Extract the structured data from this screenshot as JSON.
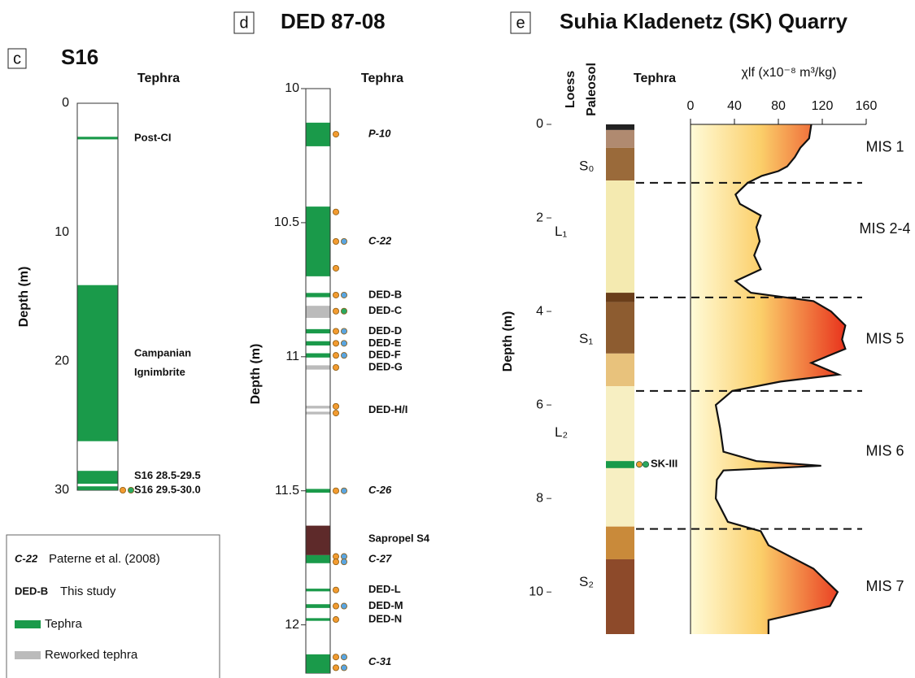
{
  "panel_c": {
    "letter": "c",
    "title": "S16",
    "column_header": "Tephra",
    "axis_label": "Depth (m)",
    "ylim": [
      0,
      30
    ],
    "yticks": [
      0,
      10,
      20,
      30
    ],
    "layers": [
      {
        "top": 2.6,
        "bottom": 2.8,
        "color": "#1a9a4a"
      },
      {
        "top": 14.1,
        "bottom": 26.2,
        "color": "#1a9a4a"
      },
      {
        "top": 28.5,
        "bottom": 29.5,
        "color": "#1a9a4a"
      },
      {
        "top": 29.7,
        "bottom": 30,
        "color": "#1a9a4a"
      }
    ],
    "labels": [
      {
        "text": "Post-CI",
        "depth": 2.7
      },
      {
        "text": "Campanian",
        "depth": 19.4
      },
      {
        "text": "Ignimbrite",
        "depth": 20.9
      },
      {
        "text": "S16 28.5-29.5",
        "depth": 28.9
      },
      {
        "text": "S16 29.5-30.0",
        "depth": 30.0
      }
    ],
    "samples": [
      {
        "depth": 30.0,
        "colors": [
          "#f29b30",
          "#2aa860"
        ]
      }
    ]
  },
  "panel_d": {
    "letter": "d",
    "title": "DED 87-08",
    "column_header": "Tephra",
    "axis_label": "Depth (m)",
    "ylim": [
      10,
      12.18
    ],
    "yticks": [
      10,
      10.5,
      11,
      11.5,
      12
    ],
    "layers": [
      {
        "top": 10.127,
        "bottom": 10.215,
        "color": "#1a9a4a"
      },
      {
        "top": 10.44,
        "bottom": 10.7,
        "color": "#1a9a4a"
      },
      {
        "top": 10.762,
        "bottom": 10.778,
        "color": "#1a9a4a"
      },
      {
        "top": 10.81,
        "bottom": 10.855,
        "color": "#bbbbbb"
      },
      {
        "top": 10.897,
        "bottom": 10.913,
        "color": "#1a9a4a"
      },
      {
        "top": 10.942,
        "bottom": 10.958,
        "color": "#1a9a4a"
      },
      {
        "top": 10.987,
        "bottom": 11.003,
        "color": "#1a9a4a"
      },
      {
        "top": 11.032,
        "bottom": 11.048,
        "color": "#bbbbbb"
      },
      {
        "top": 11.183,
        "bottom": 11.193,
        "color": "#bbbbbb"
      },
      {
        "top": 11.205,
        "bottom": 11.215,
        "color": "#bbbbbb"
      },
      {
        "top": 11.493,
        "bottom": 11.507,
        "color": "#1a9a4a"
      },
      {
        "top": 11.63,
        "bottom": 11.74,
        "color": "#5e2a2a"
      },
      {
        "top": 11.74,
        "bottom": 11.77,
        "color": "#1a9a4a"
      },
      {
        "top": 11.865,
        "bottom": 11.875,
        "color": "#1a9a4a"
      },
      {
        "top": 11.923,
        "bottom": 11.937,
        "color": "#1a9a4a"
      },
      {
        "top": 11.975,
        "bottom": 11.985,
        "color": "#1a9a4a"
      },
      {
        "top": 12.11,
        "bottom": 12.18,
        "color": "#1a9a4a"
      }
    ],
    "labels": [
      {
        "text": "P-10",
        "depth": 10.17,
        "color": "#111111",
        "italic": true
      },
      {
        "text": "C-22",
        "depth": 10.57,
        "color": "#111111",
        "italic": true
      },
      {
        "text": "DED-B",
        "depth": 10.77,
        "color": "#111111",
        "italic": false
      },
      {
        "text": "DED-C",
        "depth": 10.83,
        "color": "#b0b0b0",
        "italic": false
      },
      {
        "text": "DED-D",
        "depth": 10.905,
        "color": "#111111",
        "italic": false
      },
      {
        "text": "DED-E",
        "depth": 10.95,
        "color": "#111111",
        "italic": false
      },
      {
        "text": "DED-F",
        "depth": 10.995,
        "color": "#111111",
        "italic": false
      },
      {
        "text": "DED-G",
        "depth": 11.04,
        "color": "#b0b0b0",
        "italic": false
      },
      {
        "text": "DED-H/I",
        "depth": 11.2,
        "color": "#b0b0b0",
        "italic": false
      },
      {
        "text": "C-26",
        "depth": 11.5,
        "color": "#111111",
        "italic": true
      },
      {
        "text": "Sapropel S4",
        "depth": 11.68,
        "color": "#6b2c2c",
        "italic": false
      },
      {
        "text": "C-27",
        "depth": 11.755,
        "color": "#111111",
        "italic": true
      },
      {
        "text": "DED-L",
        "depth": 11.87,
        "color": "#111111",
        "italic": false
      },
      {
        "text": "DED-M",
        "depth": 11.93,
        "color": "#111111",
        "italic": false
      },
      {
        "text": "DED-N",
        "depth": 11.98,
        "color": "#111111",
        "italic": false
      },
      {
        "text": "C-31",
        "depth": 12.14,
        "color": "#111111",
        "italic": true
      }
    ],
    "samples": [
      {
        "depth": 10.17,
        "colors": [
          "#f29b30"
        ]
      },
      {
        "depth": 10.46,
        "colors": [
          "#f29b30"
        ]
      },
      {
        "depth": 10.57,
        "colors": [
          "#f29b30",
          "#5aa5e0"
        ]
      },
      {
        "depth": 10.67,
        "colors": [
          "#f29b30"
        ]
      },
      {
        "depth": 10.77,
        "colors": [
          "#f29b30",
          "#5aa5e0"
        ]
      },
      {
        "depth": 10.83,
        "colors": [
          "#f29b30",
          "#2aa860"
        ]
      },
      {
        "depth": 10.905,
        "colors": [
          "#f29b30",
          "#5aa5e0"
        ]
      },
      {
        "depth": 10.95,
        "colors": [
          "#f29b30",
          "#5aa5e0"
        ]
      },
      {
        "depth": 10.995,
        "colors": [
          "#f29b30",
          "#5aa5e0"
        ]
      },
      {
        "depth": 11.04,
        "colors": [
          "#f29b30"
        ]
      },
      {
        "depth": 11.185,
        "colors": [
          "#f29b30"
        ]
      },
      {
        "depth": 11.21,
        "colors": [
          "#f29b30"
        ]
      },
      {
        "depth": 11.5,
        "colors": [
          "#f29b30",
          "#5aa5e0"
        ]
      },
      {
        "depth": 11.745,
        "colors": [
          "#f29b30",
          "#5aa5e0"
        ]
      },
      {
        "depth": 11.765,
        "colors": [
          "#f29b30",
          "#5aa5e0"
        ]
      },
      {
        "depth": 11.87,
        "colors": [
          "#f29b30"
        ]
      },
      {
        "depth": 11.93,
        "colors": [
          "#f29b30",
          "#5aa5e0"
        ]
      },
      {
        "depth": 11.98,
        "colors": [
          "#f29b30"
        ]
      },
      {
        "depth": 12.12,
        "colors": [
          "#f29b30",
          "#5aa5e0"
        ]
      },
      {
        "depth": 12.16,
        "colors": [
          "#f29b30",
          "#5aa5e0"
        ]
      }
    ]
  },
  "legend": {
    "ref_code": "C-22",
    "ref_text": "Paterne et al. (2008)",
    "study_code": "DED-B",
    "study_text": "This study",
    "tephra": "Tephra",
    "tephra_color": "#1a9a4a",
    "reworked": "Reworked tephra",
    "reworked_color": "#bbbbbb"
  },
  "panel_e": {
    "letter": "e",
    "title": "Suhia Kladenetz (SK) Quarry",
    "loess_header": "Loess",
    "paleosol_header": "Paleosol",
    "column_header": "Tephra",
    "x_axis_label": "χlf (x10⁻⁸ m³/kg)",
    "axis_label": "Depth (m)",
    "ylim": [
      0,
      10.9
    ],
    "yticks": [
      0,
      2,
      4,
      6,
      8,
      10
    ],
    "xlim": [
      0,
      160
    ],
    "xticks": [
      0,
      40,
      80,
      120,
      160
    ],
    "layers": [
      {
        "top": 0,
        "bottom": 0.12,
        "color": "#222222"
      },
      {
        "top": 0.12,
        "bottom": 0.5,
        "color": "#b08a70"
      },
      {
        "top": 0.5,
        "bottom": 1.2,
        "color": "#9a6a3a"
      },
      {
        "top": 1.2,
        "bottom": 3.6,
        "color": "#f4eab0"
      },
      {
        "top": 3.6,
        "bottom": 3.8,
        "color": "#6a3e1a"
      },
      {
        "top": 3.8,
        "bottom": 4.9,
        "color": "#8d5c30"
      },
      {
        "top": 4.9,
        "bottom": 5.6,
        "color": "#e8c27c"
      },
      {
        "top": 5.6,
        "bottom": 8.6,
        "color": "#f7efc2"
      },
      {
        "top": 7.2,
        "bottom": 7.35,
        "color": "#1a9a4a"
      },
      {
        "top": 8.6,
        "bottom": 9.3,
        "color": "#c98a3a"
      },
      {
        "top": 9.3,
        "bottom": 10.9,
        "color": "#8d4a2a"
      }
    ],
    "units": [
      {
        "text": "S₀",
        "depth": 0.9
      },
      {
        "text": "L₁",
        "depth": 2.3
      },
      {
        "text": "S₁",
        "depth": 4.6
      },
      {
        "text": "L₂",
        "depth": 6.6
      },
      {
        "text": "S₂",
        "depth": 9.8
      }
    ],
    "tephra_label": {
      "text": "SK-III",
      "depth": 7.27,
      "colors": [
        "#f29b30",
        "#2aa860"
      ]
    },
    "boundaries": [
      1.25,
      3.7,
      5.7,
      8.65
    ],
    "mis": [
      {
        "text": "MIS 1",
        "depth": 0.5
      },
      {
        "text": "MIS 2-4",
        "depth": 2.25
      },
      {
        "text": "MIS 5",
        "depth": 4.6
      },
      {
        "text": "MIS 6",
        "depth": 7.0
      },
      {
        "text": "MIS 7",
        "depth": 9.9
      }
    ],
    "curve": {
      "depth": [
        0,
        0.3,
        0.5,
        0.7,
        0.9,
        1.0,
        1.1,
        1.25,
        1.5,
        1.7,
        1.95,
        2.2,
        2.5,
        2.8,
        3.1,
        3.35,
        3.6,
        3.78,
        4.0,
        4.3,
        4.6,
        4.8,
        5.1,
        5.35,
        5.5,
        5.7,
        6.0,
        6.5,
        7.0,
        7.2,
        7.3,
        7.4,
        7.6,
        8.0,
        8.5,
        8.7,
        9.0,
        9.5,
        10.0,
        10.3,
        10.6,
        10.9
      ],
      "chi": [
        110,
        108,
        100,
        95,
        88,
        80,
        65,
        52,
        41,
        45,
        64,
        60,
        63,
        58,
        64,
        41,
        55,
        112,
        128,
        141,
        138,
        141,
        110,
        135,
        82,
        38,
        23,
        27,
        30,
        60,
        119,
        30,
        24,
        23,
        34,
        64,
        71,
        112,
        134,
        127,
        71,
        71
      ]
    }
  }
}
